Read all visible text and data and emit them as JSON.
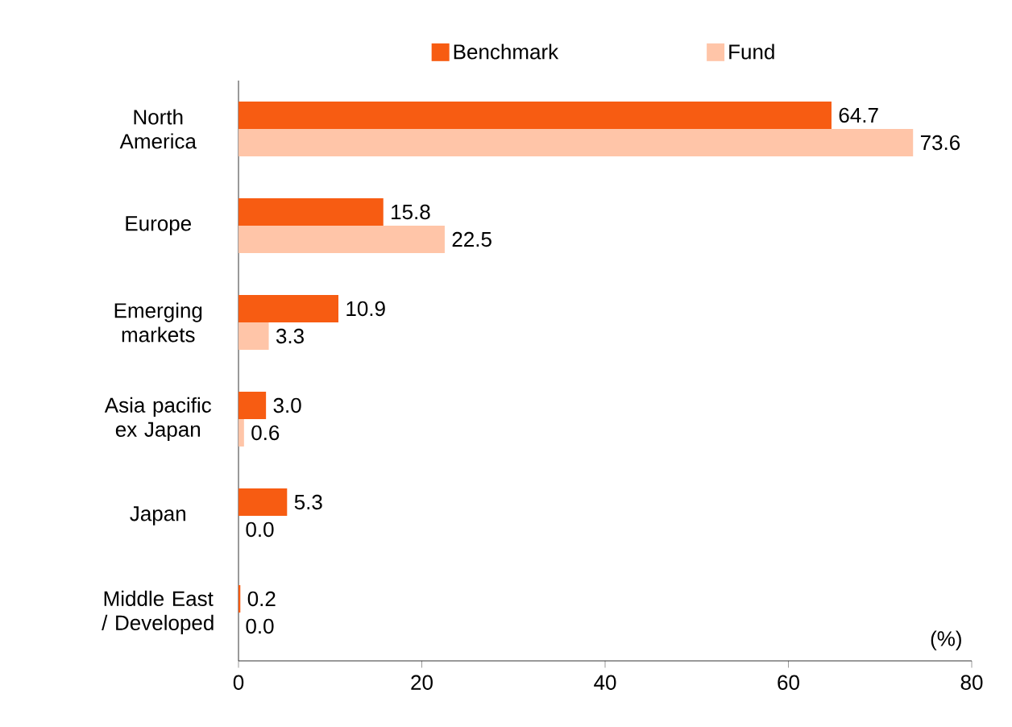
{
  "chart_data": {
    "type": "bar",
    "orientation": "horizontal",
    "categories": [
      "North America",
      "Europe",
      "Emerging markets",
      "Asia pacific ex Japan",
      "Japan",
      "Middle East / Developed"
    ],
    "series": [
      {
        "name": "Benchmark",
        "color": "#f75c12",
        "values": [
          64.7,
          15.8,
          10.9,
          3.0,
          5.3,
          0.2
        ],
        "value_labels": [
          "64.7",
          "15.8",
          "10.9",
          "3.0",
          "5.3",
          "0.2"
        ]
      },
      {
        "name": "Fund",
        "color": "#ffc5a8",
        "values": [
          73.6,
          22.5,
          3.3,
          0.6,
          0.0,
          0.0
        ],
        "value_labels": [
          "73.6",
          "22.5",
          "3.3",
          "0.6",
          "0.0",
          "0.0"
        ]
      }
    ],
    "xlim": [
      0,
      80
    ],
    "xticks": [
      0,
      20,
      40,
      60,
      80
    ],
    "legend": "top",
    "grid": false,
    "annotations": [
      "(%)"
    ]
  }
}
